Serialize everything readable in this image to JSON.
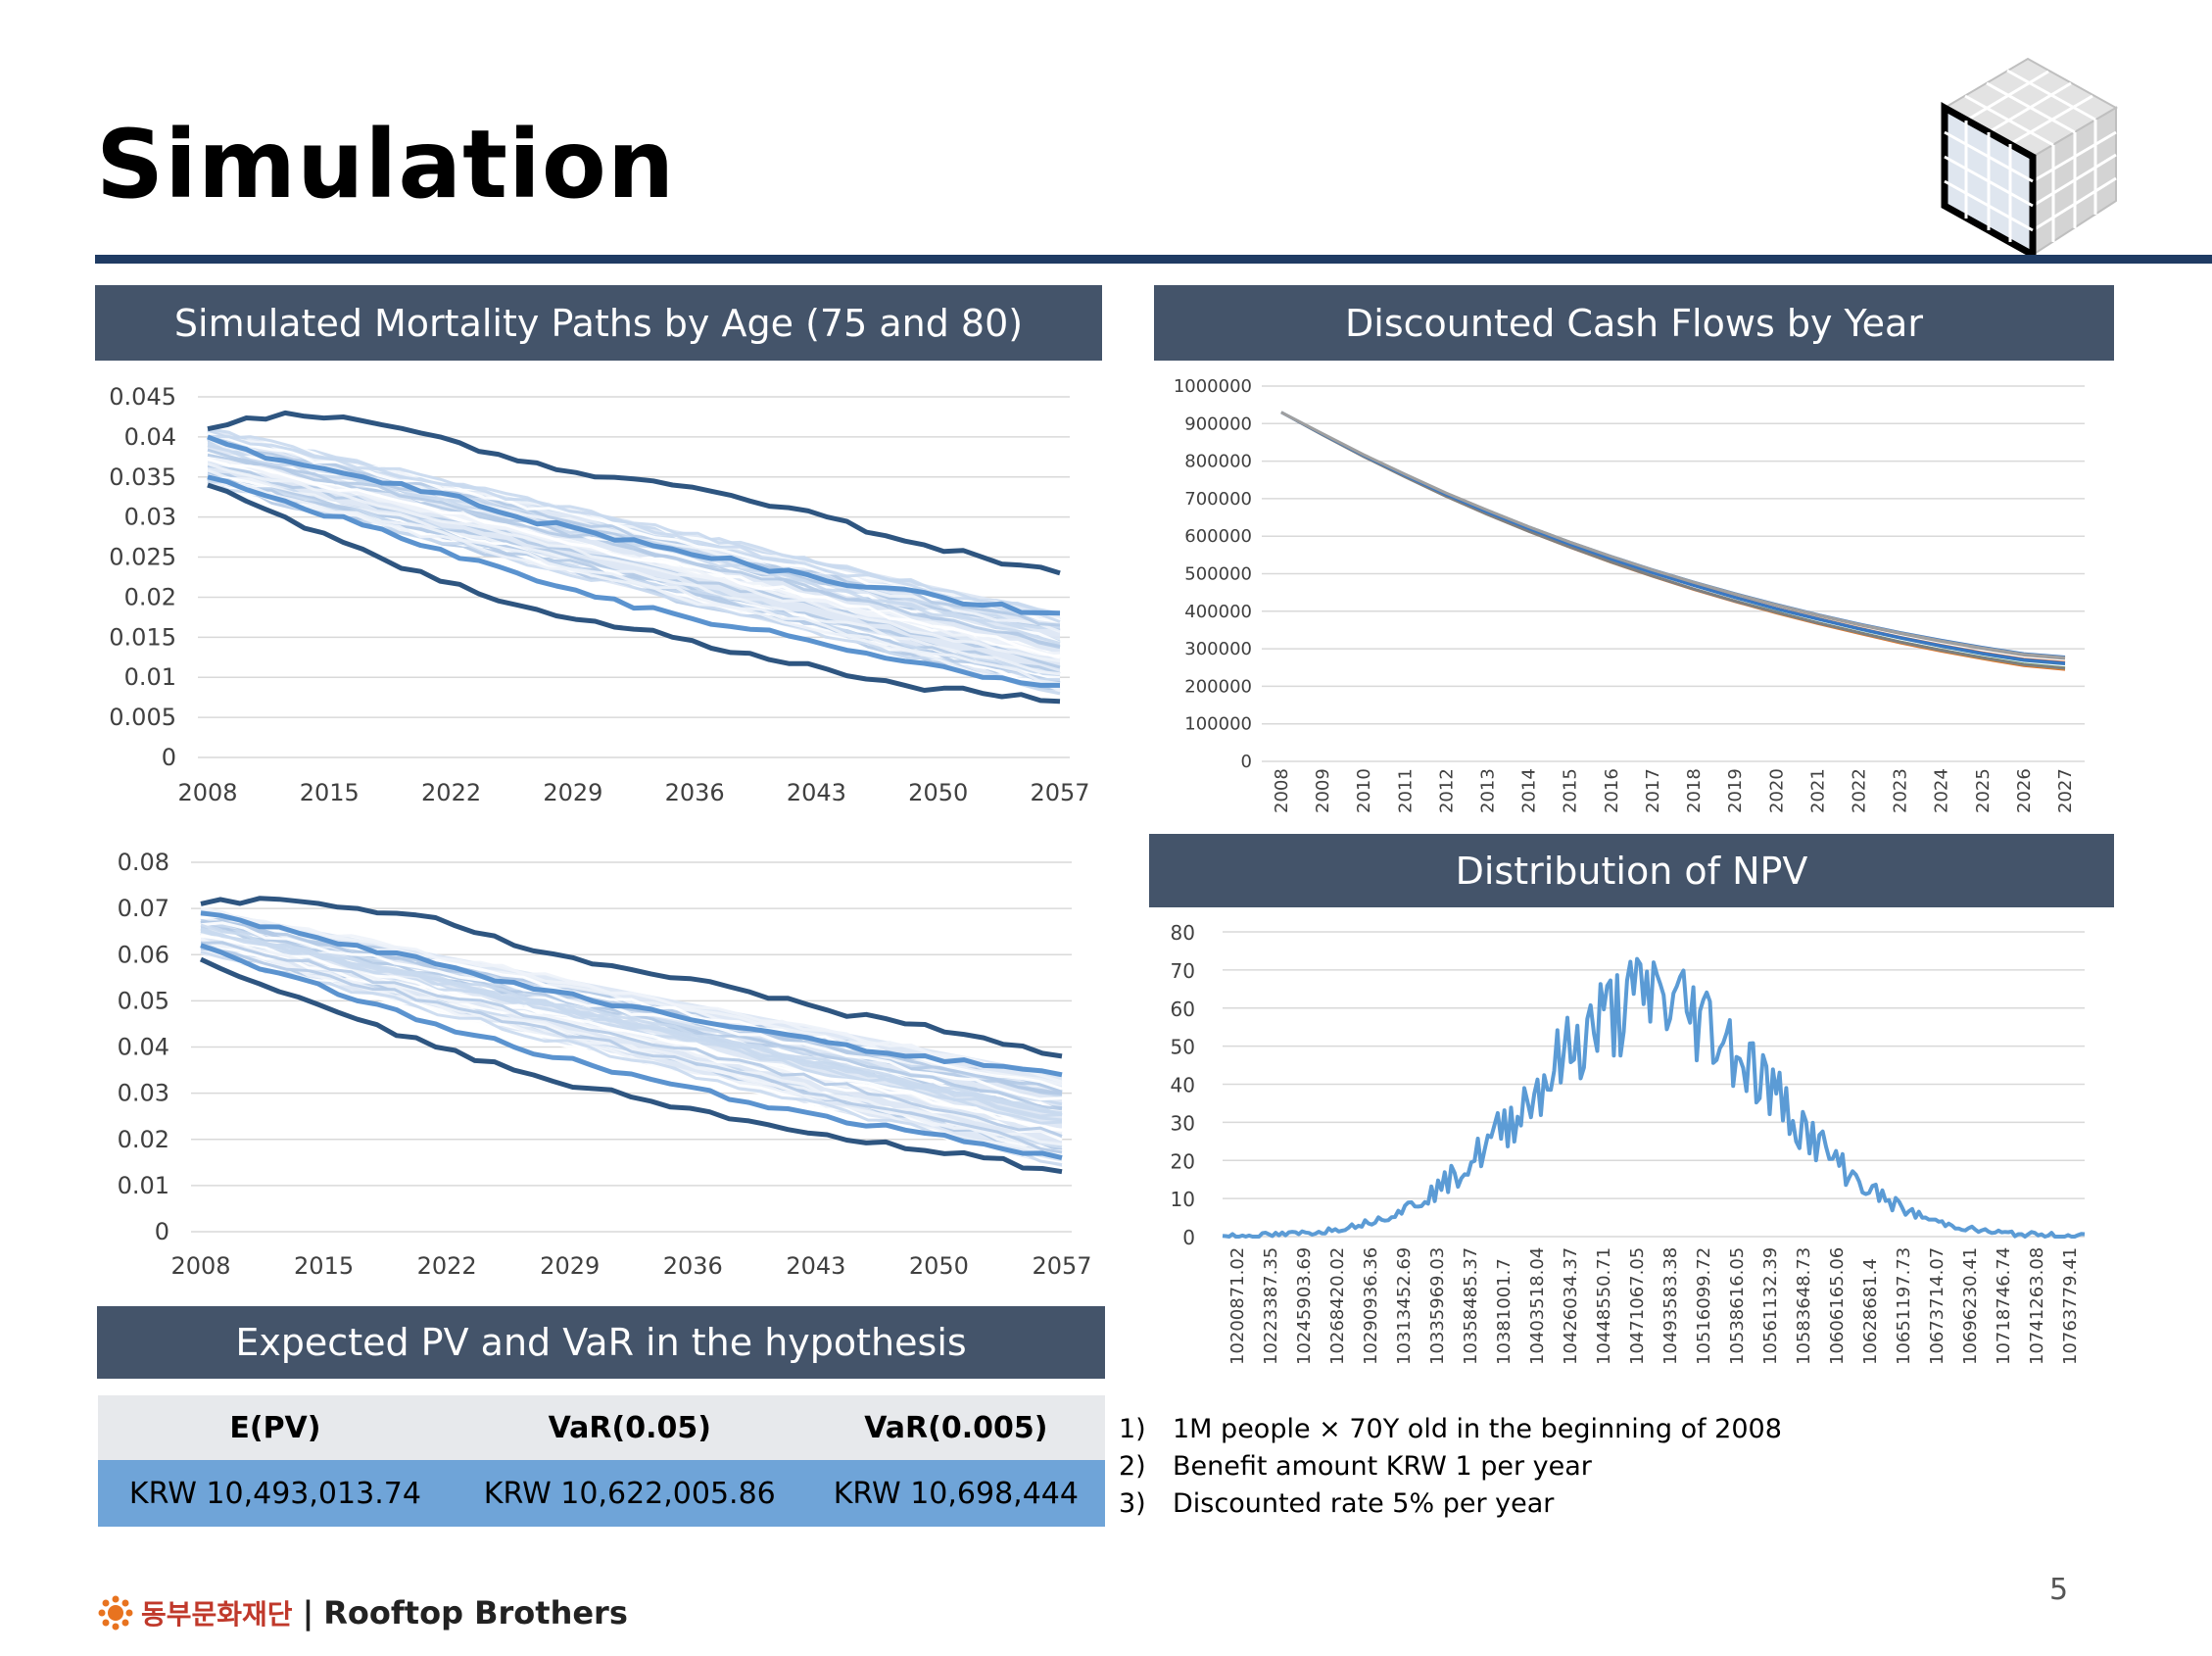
{
  "page": {
    "title": "Simulation",
    "page_number": "5",
    "footer_org": "동부문화재단",
    "footer_separator": "|",
    "footer_brand": "Rooftop Brothers"
  },
  "headers": {
    "mortality": "Simulated Mortality Paths by Age (75 and 80)",
    "cashflows": "Discounted Cash Flows by Year",
    "npv": "Distribution of NPV",
    "pv_var": "Expected PV and VaR in the hypothesis"
  },
  "table": {
    "columns": [
      "E(PV)",
      "VaR(0.05)",
      "VaR(0.005)"
    ],
    "values": [
      "KRW 10,493,013.74",
      "KRW 10,622,005.86",
      "KRW 10,698,444"
    ]
  },
  "notes": [
    {
      "num": "1)",
      "text": "1M people × 70Y old in the beginning of 2008"
    },
    {
      "num": "2)",
      "text": "Benefit amount KRW 1 per year"
    },
    {
      "num": "3)",
      "text": "Discounted rate 5% per year"
    }
  ],
  "chart_data": [
    {
      "id": "mortality75",
      "type": "line",
      "title": "",
      "x_ticks": [
        "2008",
        "2015",
        "2022",
        "2029",
        "2036",
        "2043",
        "2050",
        "2057"
      ],
      "y_ticks": [
        "0",
        "0.005",
        "0.01",
        "0.015",
        "0.02",
        "0.025",
        "0.03",
        "0.035",
        "0.04",
        "0.045"
      ],
      "xlim": [
        2008,
        2057
      ],
      "ylim": [
        0,
        0.045
      ],
      "band": {
        "upper_start": 0.041,
        "upper_end": 0.018,
        "lower_start": 0.034,
        "lower_end": 0.008
      },
      "highlight_series": [
        {
          "values": [
            0.041,
            0.043,
            0.042,
            0.04,
            0.037,
            0.035,
            0.034,
            0.032,
            0.03,
            0.027,
            0.025,
            0.023
          ]
        },
        {
          "values": [
            0.034,
            0.03,
            0.026,
            0.022,
            0.019,
            0.017,
            0.015,
            0.013,
            0.011,
            0.009,
            0.008,
            0.007
          ]
        },
        {
          "values": [
            0.04,
            0.037,
            0.035,
            0.033,
            0.03,
            0.028,
            0.026,
            0.024,
            0.022,
            0.021,
            0.019,
            0.018
          ]
        },
        {
          "values": [
            0.035,
            0.032,
            0.029,
            0.026,
            0.023,
            0.02,
            0.018,
            0.016,
            0.014,
            0.012,
            0.01,
            0.009
          ]
        }
      ]
    },
    {
      "id": "mortality80",
      "type": "line",
      "title": "",
      "x_ticks": [
        "2008",
        "2015",
        "2022",
        "2029",
        "2036",
        "2043",
        "2050",
        "2057"
      ],
      "y_ticks": [
        "0",
        "0.01",
        "0.02",
        "0.03",
        "0.04",
        "0.05",
        "0.06",
        "0.07",
        "0.08"
      ],
      "xlim": [
        2008,
        2057
      ],
      "ylim": [
        0,
        0.08
      ],
      "band": {
        "upper_start": 0.07,
        "upper_end": 0.034,
        "lower_start": 0.06,
        "lower_end": 0.014
      },
      "highlight_series": [
        {
          "values": [
            0.071,
            0.072,
            0.07,
            0.068,
            0.062,
            0.058,
            0.055,
            0.052,
            0.048,
            0.045,
            0.042,
            0.038
          ]
        },
        {
          "values": [
            0.059,
            0.052,
            0.046,
            0.04,
            0.035,
            0.031,
            0.027,
            0.024,
            0.021,
            0.018,
            0.016,
            0.013
          ]
        },
        {
          "values": [
            0.069,
            0.066,
            0.062,
            0.058,
            0.054,
            0.05,
            0.047,
            0.044,
            0.041,
            0.038,
            0.036,
            0.034
          ]
        },
        {
          "values": [
            0.062,
            0.056,
            0.05,
            0.045,
            0.04,
            0.036,
            0.032,
            0.028,
            0.025,
            0.022,
            0.019,
            0.016
          ]
        }
      ]
    },
    {
      "id": "cashflows",
      "type": "line",
      "title": "",
      "x_ticks": [
        "2008",
        "2009",
        "2010",
        "2011",
        "2012",
        "2013",
        "2014",
        "2015",
        "2016",
        "2017",
        "2018",
        "2019",
        "2020",
        "2021",
        "2022",
        "2023",
        "2024",
        "2025",
        "2026",
        "2027"
      ],
      "y_ticks": [
        "0",
        "100000",
        "200000",
        "300000",
        "400000",
        "500000",
        "600000",
        "700000",
        "800000",
        "900000",
        "1000000"
      ],
      "ylim": [
        0,
        1000000
      ],
      "series": [
        {
          "values": [
            930000,
            870000,
            812000,
            758000,
            706000,
            658000,
            613000,
            571000,
            531000,
            494000,
            459000,
            427000,
            397000,
            369000,
            343000,
            318000,
            296000,
            276000,
            258000,
            248000
          ]
        },
        {
          "values": [
            930000,
            872000,
            815000,
            762000,
            711000,
            664000,
            620000,
            578000,
            539000,
            503000,
            469000,
            437000,
            407000,
            380000,
            354000,
            330000,
            308000,
            288000,
            271000,
            262000
          ]
        },
        {
          "values": [
            930000,
            873000,
            817000,
            765000,
            715000,
            669000,
            625000,
            584000,
            546000,
            510000,
            477000,
            446000,
            417000,
            390000,
            365000,
            342000,
            321000,
            302000,
            285000,
            276000
          ]
        }
      ],
      "series_colors": [
        "#e06c2c",
        "#3a78c3",
        "#8d8d8d",
        "#f2b300",
        "#4aa54a"
      ]
    },
    {
      "id": "npv",
      "type": "line",
      "title": "",
      "x_ticks": [
        "10200871.02",
        "10223387.35",
        "10245903.69",
        "10268420.02",
        "10290936.36",
        "10313452.69",
        "10335969.03",
        "10358485.37",
        "10381001.7",
        "10403518.04",
        "10426034.37",
        "10448550.71",
        "10471067.05",
        "10493583.38",
        "10516099.72",
        "10538616.05",
        "10561132.39",
        "10583648.73",
        "10606165.06",
        "10628681.4",
        "10651197.73",
        "10673714.07",
        "10696230.41",
        "10718746.74",
        "10741263.08",
        "10763779.41"
      ],
      "y_ticks": [
        "0",
        "10",
        "20",
        "30",
        "40",
        "50",
        "60",
        "70",
        "80"
      ],
      "ylim": [
        0,
        80
      ],
      "peak": 72
    }
  ],
  "colors": {
    "header_bg": "#44546a",
    "rule": "#1f3b63",
    "dark_line": "#2e5580",
    "mid_line": "#5b93cf",
    "band": "#dbe6f4",
    "npv_line": "#5b9bd5",
    "table_header_bg": "#e7e9ec",
    "table_value_bg": "#6fa4d8"
  }
}
